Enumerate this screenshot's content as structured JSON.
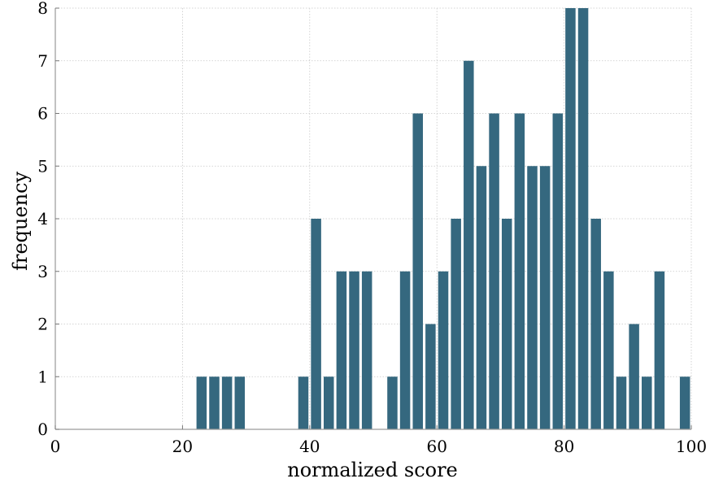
{
  "chart_data": {
    "type": "bar",
    "title": "",
    "xlabel": "normalized score",
    "ylabel": "frequency",
    "xlim": [
      0,
      100
    ],
    "ylim": [
      0,
      8
    ],
    "xticks": [
      0,
      20,
      40,
      60,
      80,
      100
    ],
    "yticks": [
      0,
      1,
      2,
      3,
      4,
      5,
      6,
      7,
      8
    ],
    "grid": true,
    "bar_color": "#35687f",
    "bin_width": 2,
    "bins": [
      {
        "x": 23,
        "value": 1
      },
      {
        "x": 25,
        "value": 1
      },
      {
        "x": 27,
        "value": 1
      },
      {
        "x": 29,
        "value": 1
      },
      {
        "x": 39,
        "value": 1
      },
      {
        "x": 41,
        "value": 4
      },
      {
        "x": 43,
        "value": 1
      },
      {
        "x": 45,
        "value": 3
      },
      {
        "x": 47,
        "value": 3
      },
      {
        "x": 49,
        "value": 3
      },
      {
        "x": 53,
        "value": 1
      },
      {
        "x": 55,
        "value": 3
      },
      {
        "x": 57,
        "value": 6
      },
      {
        "x": 59,
        "value": 2
      },
      {
        "x": 61,
        "value": 3
      },
      {
        "x": 63,
        "value": 4
      },
      {
        "x": 65,
        "value": 7
      },
      {
        "x": 67,
        "value": 5
      },
      {
        "x": 69,
        "value": 6
      },
      {
        "x": 71,
        "value": 4
      },
      {
        "x": 73,
        "value": 6
      },
      {
        "x": 75,
        "value": 5
      },
      {
        "x": 77,
        "value": 5
      },
      {
        "x": 79,
        "value": 6
      },
      {
        "x": 81,
        "value": 8
      },
      {
        "x": 83,
        "value": 8
      },
      {
        "x": 85,
        "value": 4
      },
      {
        "x": 87,
        "value": 3
      },
      {
        "x": 89,
        "value": 1
      },
      {
        "x": 91,
        "value": 2
      },
      {
        "x": 93,
        "value": 1
      },
      {
        "x": 95,
        "value": 3
      },
      {
        "x": 99,
        "value": 1
      }
    ]
  }
}
